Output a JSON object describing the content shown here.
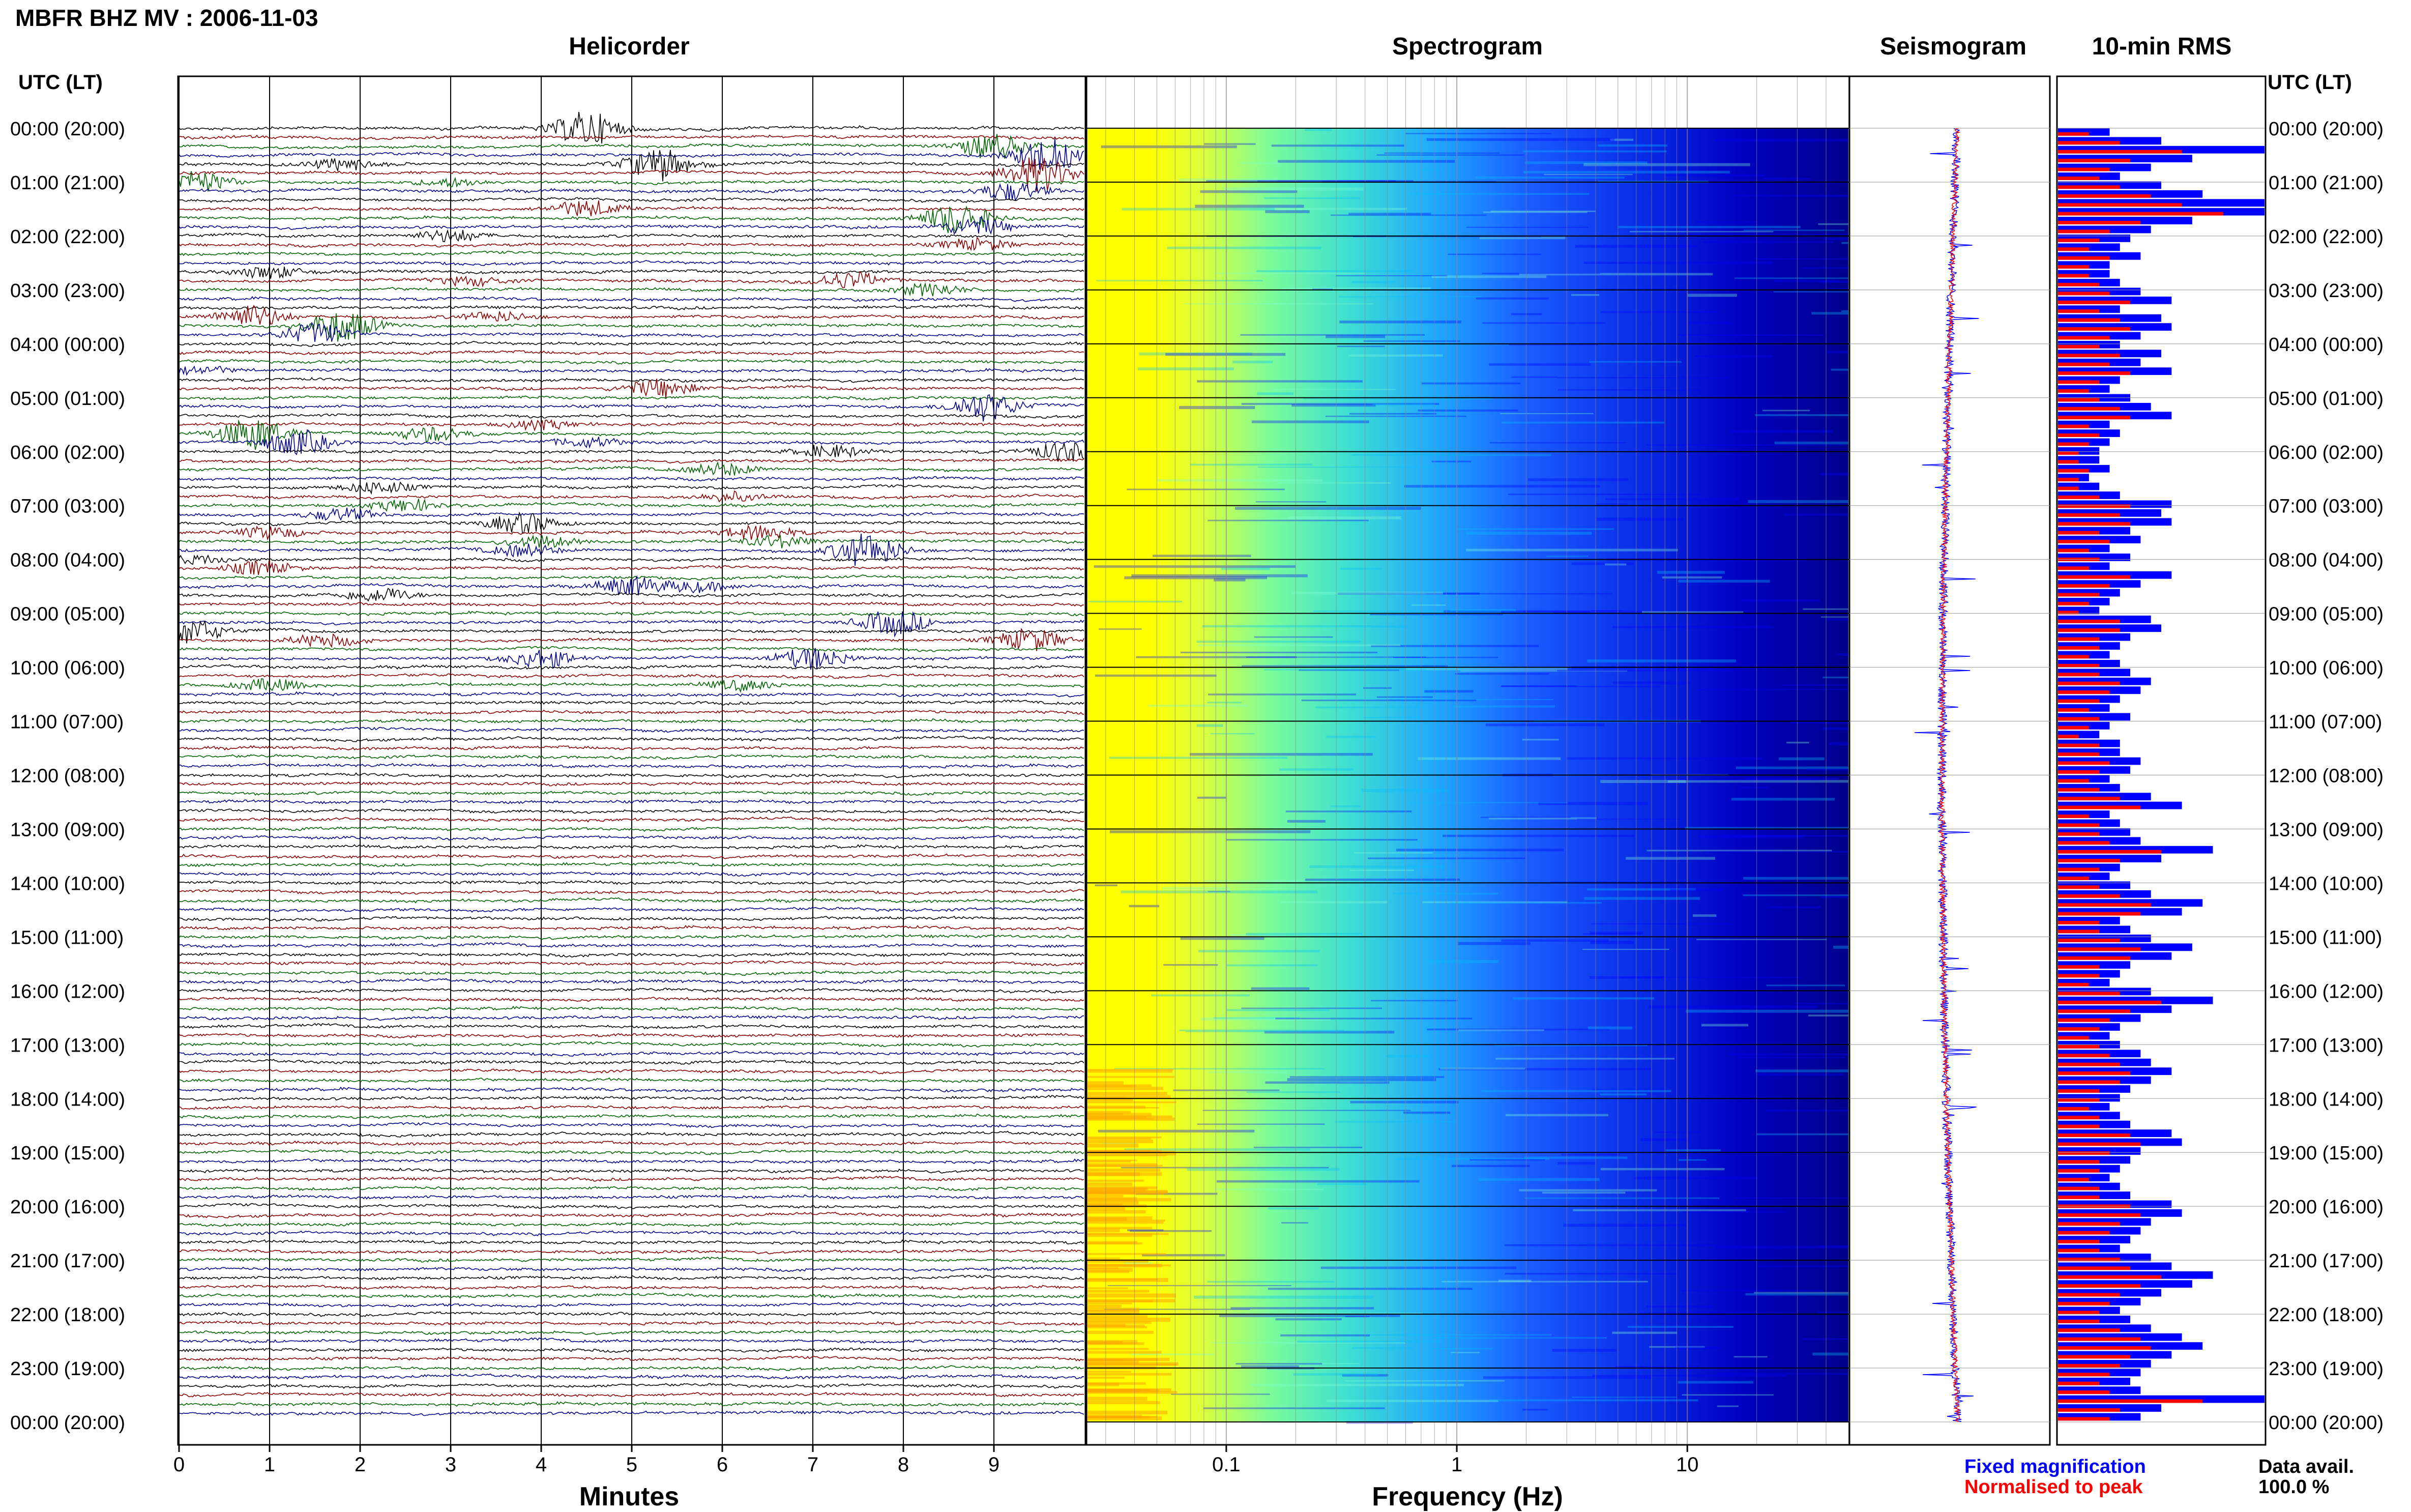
{
  "header": {
    "title": "MBFR BHZ MV : 2006-11-03"
  },
  "panels": {
    "helicorder": "Helicorder",
    "spectrogram": "Spectrogram",
    "seismogram": "Seismogram",
    "rms": "10-min RMS"
  },
  "axes": {
    "time_header": "UTC (LT)",
    "helicorder_xlabel": "Minutes",
    "spectrogram_xlabel": "Frequency (Hz)"
  },
  "legend": {
    "fixed": "Fixed magnification",
    "normalised": "Normalised to peak",
    "data_avail_label": "Data avail.",
    "data_avail_value": "100.0 %"
  },
  "colors": {
    "trace_cycle": [
      "#000000",
      "#8b0000",
      "#006400",
      "#00008b"
    ],
    "fixed": "#0000ff",
    "normalised": "#ff0000"
  },
  "chart_data": [
    {
      "type": "line",
      "title": "Helicorder",
      "xlabel": "Minutes",
      "x_ticks": [
        0,
        1,
        2,
        3,
        4,
        5,
        6,
        7,
        8,
        9
      ],
      "xlim": [
        0,
        10
      ],
      "y_ticks": [
        "00:00 (20:00)",
        "01:00 (21:00)",
        "02:00 (22:00)",
        "03:00 (23:00)",
        "04:00 (00:00)",
        "05:00 (01:00)",
        "06:00 (02:00)",
        "07:00 (03:00)",
        "08:00 (04:00)",
        "09:00 (05:00)",
        "10:00 (06:00)",
        "11:00 (07:00)",
        "12:00 (08:00)",
        "13:00 (09:00)",
        "14:00 (10:00)",
        "15:00 (11:00)",
        "16:00 (12:00)",
        "17:00 (13:00)",
        "18:00 (14:00)",
        "19:00 (15:00)",
        "20:00 (16:00)",
        "21:00 (17:00)",
        "22:00 (18:00)",
        "23:00 (19:00)",
        "00:00 (20:00)"
      ],
      "rows": 144,
      "events": [
        {
          "row": 0,
          "minute": 4.5,
          "amp": 3.5
        },
        {
          "row": 2,
          "minute": 9.0,
          "amp": 2.5
        },
        {
          "row": 3,
          "minute": 9.6,
          "amp": 3.5
        },
        {
          "row": 4,
          "minute": 5.3,
          "amp": 3.2
        },
        {
          "row": 4,
          "minute": 1.8,
          "amp": 1.2
        },
        {
          "row": 5,
          "minute": 9.5,
          "amp": 3.5
        },
        {
          "row": 6,
          "minute": 0.2,
          "amp": 2.0
        },
        {
          "row": 6,
          "minute": 3.0,
          "amp": 0.8
        },
        {
          "row": 7,
          "minute": 9.2,
          "amp": 1.8
        },
        {
          "row": 9,
          "minute": 4.5,
          "amp": 1.6
        },
        {
          "row": 10,
          "minute": 8.6,
          "amp": 3.2
        },
        {
          "row": 11,
          "minute": 8.8,
          "amp": 1.8
        },
        {
          "row": 12,
          "minute": 3.0,
          "amp": 1.2
        },
        {
          "row": 13,
          "minute": 8.8,
          "amp": 1.2
        },
        {
          "row": 16,
          "minute": 1.0,
          "amp": 1.2
        },
        {
          "row": 17,
          "minute": 3.2,
          "amp": 0.9
        },
        {
          "row": 17,
          "minute": 7.4,
          "amp": 1.6
        },
        {
          "row": 18,
          "minute": 8.3,
          "amp": 1.2
        },
        {
          "row": 21,
          "minute": 0.8,
          "amp": 2.2
        },
        {
          "row": 21,
          "minute": 3.5,
          "amp": 1.0
        },
        {
          "row": 22,
          "minute": 1.8,
          "amp": 3.2
        },
        {
          "row": 23,
          "minute": 1.5,
          "amp": 2.0
        },
        {
          "row": 27,
          "minute": 0.2,
          "amp": 0.8
        },
        {
          "row": 29,
          "minute": 5.3,
          "amp": 1.8
        },
        {
          "row": 31,
          "minute": 8.9,
          "amp": 2.8
        },
        {
          "row": 33,
          "minute": 4.0,
          "amp": 0.9
        },
        {
          "row": 34,
          "minute": 2.8,
          "amp": 1.5
        },
        {
          "row": 34,
          "minute": 0.8,
          "amp": 3.2
        },
        {
          "row": 35,
          "minute": 1.3,
          "amp": 2.5
        },
        {
          "row": 35,
          "minute": 4.5,
          "amp": 1.0
        },
        {
          "row": 36,
          "minute": 7.2,
          "amp": 1.2
        },
        {
          "row": 36,
          "minute": 9.8,
          "amp": 2.0
        },
        {
          "row": 38,
          "minute": 6.0,
          "amp": 1.2
        },
        {
          "row": 40,
          "minute": 2.2,
          "amp": 1.2
        },
        {
          "row": 41,
          "minute": 6.1,
          "amp": 0.9
        },
        {
          "row": 42,
          "minute": 2.5,
          "amp": 1.2
        },
        {
          "row": 43,
          "minute": 1.8,
          "amp": 1.2
        },
        {
          "row": 44,
          "minute": 3.8,
          "amp": 2.0
        },
        {
          "row": 45,
          "minute": 6.4,
          "amp": 1.5
        },
        {
          "row": 45,
          "minute": 1.0,
          "amp": 1.2
        },
        {
          "row": 46,
          "minute": 4.0,
          "amp": 1.2
        },
        {
          "row": 46,
          "minute": 6.6,
          "amp": 1.2
        },
        {
          "row": 47,
          "minute": 7.6,
          "amp": 3.5
        },
        {
          "row": 47,
          "minute": 3.8,
          "amp": 1.2
        },
        {
          "row": 48,
          "minute": 0.2,
          "amp": 0.8
        },
        {
          "row": 49,
          "minute": 0.9,
          "amp": 1.4
        },
        {
          "row": 51,
          "minute": 5.0,
          "amp": 1.8
        },
        {
          "row": 51,
          "minute": 5.7,
          "amp": 1.0
        },
        {
          "row": 52,
          "minute": 2.2,
          "amp": 1.5
        },
        {
          "row": 55,
          "minute": 7.9,
          "amp": 2.5
        },
        {
          "row": 56,
          "minute": 0.1,
          "amp": 2.5
        },
        {
          "row": 57,
          "minute": 9.4,
          "amp": 2.2
        },
        {
          "row": 57,
          "minute": 1.6,
          "amp": 1.2
        },
        {
          "row": 59,
          "minute": 4.0,
          "amp": 1.8
        },
        {
          "row": 59,
          "minute": 7.0,
          "amp": 2.2
        },
        {
          "row": 62,
          "minute": 1.0,
          "amp": 1.2
        },
        {
          "row": 62,
          "minute": 6.2,
          "amp": 1.0
        }
      ]
    },
    {
      "type": "heatmap",
      "title": "Spectrogram",
      "xlabel": "Frequency (Hz)",
      "x_scale": "log",
      "xlim": [
        0.025,
        50
      ],
      "x_ticks": [
        0.1,
        1,
        10
      ],
      "colormap": [
        "#00008b",
        "#0000ff",
        "#00bfff",
        "#7fffd4",
        "#ffff00",
        "#ffa500"
      ]
    },
    {
      "type": "line",
      "title": "Seismogram",
      "series": [
        {
          "name": "Fixed magnification",
          "color": "#0000ff"
        },
        {
          "name": "Normalised to peak",
          "color": "#ff0000"
        }
      ]
    },
    {
      "type": "bar",
      "title": "10-min RMS",
      "series": [
        {
          "name": "Fixed magnification",
          "color": "#0000ff",
          "values": [
            0.25,
            0.5,
            1.0,
            0.65,
            0.45,
            0.3,
            0.5,
            0.7,
            1.0,
            1.0,
            0.65,
            0.45,
            0.35,
            0.3,
            0.4,
            0.25,
            0.25,
            0.3,
            0.4,
            0.55,
            0.3,
            0.5,
            0.55,
            0.4,
            0.3,
            0.5,
            0.4,
            0.55,
            0.3,
            0.25,
            0.35,
            0.45,
            0.55,
            0.25,
            0.3,
            0.25,
            0.2,
            0.2,
            0.25,
            0.15,
            0.2,
            0.3,
            0.55,
            0.5,
            0.55,
            0.35,
            0.4,
            0.25,
            0.35,
            0.25,
            0.55,
            0.4,
            0.3,
            0.25,
            0.2,
            0.45,
            0.5,
            0.35,
            0.3,
            0.25,
            0.3,
            0.35,
            0.45,
            0.4,
            0.3,
            0.25,
            0.35,
            0.25,
            0.2,
            0.3,
            0.3,
            0.4,
            0.35,
            0.25,
            0.3,
            0.45,
            0.6,
            0.25,
            0.3,
            0.35,
            0.4,
            0.75,
            0.5,
            0.3,
            0.25,
            0.35,
            0.45,
            0.7,
            0.6,
            0.3,
            0.35,
            0.45,
            0.65,
            0.55,
            0.35,
            0.3,
            0.25,
            0.45,
            0.75,
            0.55,
            0.4,
            0.3,
            0.25,
            0.3,
            0.4,
            0.45,
            0.55,
            0.45,
            0.35,
            0.3,
            0.25,
            0.3,
            0.35,
            0.55,
            0.6,
            0.4,
            0.35,
            0.3,
            0.25,
            0.3,
            0.35,
            0.55,
            0.6,
            0.45,
            0.4,
            0.35,
            0.3,
            0.45,
            0.55,
            0.75,
            0.65,
            0.5,
            0.4,
            0.3,
            0.35,
            0.45,
            0.6,
            0.7,
            0.55,
            0.45,
            0.4,
            0.35,
            0.4,
            1.0,
            0.5,
            0.4
          ]
        },
        {
          "name": "Normalised to peak",
          "color": "#ff0000",
          "values": [
            0.15,
            0.3,
            0.6,
            0.35,
            0.25,
            0.2,
            0.3,
            0.45,
            0.6,
            0.8,
            0.4,
            0.25,
            0.2,
            0.15,
            0.25,
            0.15,
            0.15,
            0.2,
            0.25,
            0.35,
            0.2,
            0.3,
            0.35,
            0.25,
            0.2,
            0.3,
            0.25,
            0.35,
            0.2,
            0.15,
            0.2,
            0.3,
            0.35,
            0.15,
            0.2,
            0.15,
            0.1,
            0.1,
            0.15,
            0.1,
            0.1,
            0.2,
            0.35,
            0.3,
            0.35,
            0.2,
            0.25,
            0.15,
            0.2,
            0.15,
            0.35,
            0.25,
            0.2,
            0.15,
            0.1,
            0.3,
            0.3,
            0.2,
            0.2,
            0.15,
            0.2,
            0.2,
            0.3,
            0.25,
            0.2,
            0.15,
            0.2,
            0.15,
            0.1,
            0.2,
            0.2,
            0.25,
            0.2,
            0.15,
            0.2,
            0.3,
            0.4,
            0.15,
            0.2,
            0.2,
            0.25,
            0.5,
            0.3,
            0.2,
            0.15,
            0.2,
            0.3,
            0.45,
            0.4,
            0.2,
            0.2,
            0.3,
            0.4,
            0.35,
            0.2,
            0.2,
            0.15,
            0.3,
            0.5,
            0.35,
            0.25,
            0.2,
            0.15,
            0.2,
            0.25,
            0.3,
            0.35,
            0.3,
            0.2,
            0.2,
            0.15,
            0.2,
            0.2,
            0.35,
            0.4,
            0.25,
            0.2,
            0.2,
            0.15,
            0.2,
            0.2,
            0.35,
            0.4,
            0.3,
            0.25,
            0.2,
            0.2,
            0.3,
            0.35,
            0.5,
            0.4,
            0.3,
            0.25,
            0.2,
            0.2,
            0.3,
            0.4,
            0.45,
            0.35,
            0.3,
            0.25,
            0.2,
            0.25,
            0.7,
            0.3,
            0.25
          ]
        }
      ]
    }
  ]
}
